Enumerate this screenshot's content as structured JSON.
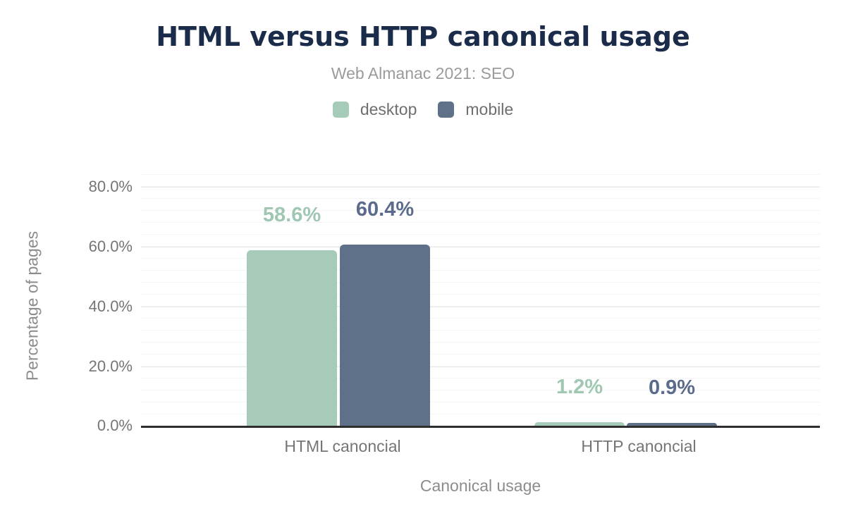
{
  "chart_data": {
    "type": "bar",
    "title": "HTML versus HTTP canonical usage",
    "subtitle": "Web Almanac 2021: SEO",
    "categories": [
      "HTML canoncial",
      "HTTP canoncial"
    ],
    "series": [
      {
        "name": "desktop",
        "color": "#a6cbb9",
        "label_color": "#9fc7b2",
        "values": [
          58.6,
          1.2
        ],
        "labels": [
          "58.6%",
          "1.2%"
        ]
      },
      {
        "name": "mobile",
        "color": "#5f7189",
        "label_color": "#5a6b8c",
        "values": [
          60.4,
          0.9
        ],
        "labels": [
          "60.4%",
          "0.9%"
        ]
      }
    ],
    "xlabel": "Canonical usage",
    "ylabel": "Percentage of pages",
    "ylim": [
      0,
      80
    ],
    "yticks": [
      0,
      20,
      40,
      60,
      80
    ],
    "ytick_labels": [
      "0.0%",
      "20.0%",
      "40.0%",
      "60.0%",
      "80.0%"
    ],
    "minor_grid_step_percent": 4,
    "grid": "horizontal",
    "legend_position": "top-center",
    "colors": {
      "title": "#1b2b4a",
      "subtitle": "#9b9b9b",
      "axis_text": "#757575",
      "axis_line": "#2e2e2e",
      "major_gridline": "#e8e8e8",
      "minor_gridline": "#f5f5f5"
    }
  }
}
